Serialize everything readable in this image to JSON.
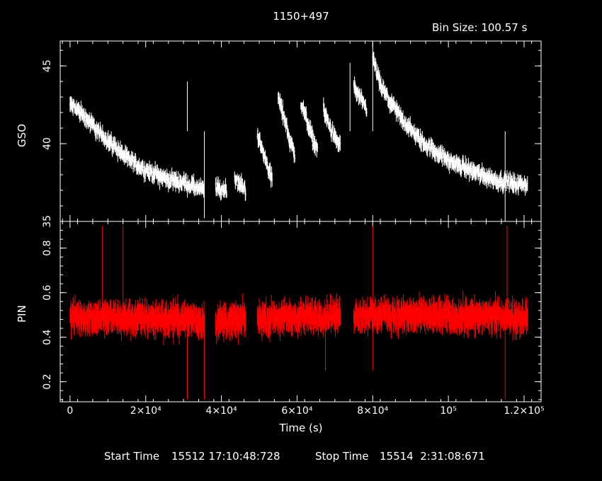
{
  "title": "1150+497",
  "bin_label": "Bin Size: 100.57 s",
  "xlabel": "Time (s)",
  "footer": {
    "start_label": "Start Time",
    "start_value": "15512 17:10:48:728",
    "stop_label": "Stop Time",
    "stop_value": "15514  2:31:08:671"
  },
  "colors": {
    "background": "#000000",
    "axes": "#ffffff",
    "gso": "#ffffff",
    "pin": "#ff0000"
  },
  "chart_data": [
    {
      "type": "scatter",
      "name": "GSO",
      "ylabel": "GSO",
      "xlim": [
        -2600,
        124500
      ],
      "ylim": [
        35,
        46.6
      ],
      "yticks": [
        "35",
        "40",
        "45"
      ],
      "xticks": [
        "0",
        "2×10⁴",
        "4×10⁴",
        "6×10⁴",
        "8×10⁴",
        "10⁵",
        "1.2×10⁵"
      ],
      "segments": [
        {
          "x": [
            0,
            2000,
            4000,
            6000,
            8000,
            10000,
            12000,
            14000,
            16000,
            18000,
            20000,
            22000,
            24000,
            26000,
            28000,
            30000,
            32000,
            34000,
            35500
          ],
          "y": [
            42.5,
            42.2,
            41.7,
            41.2,
            40.6,
            40.2,
            39.8,
            39.3,
            38.9,
            38.6,
            38.3,
            38.1,
            37.9,
            37.7,
            37.6,
            37.5,
            37.3,
            37.1,
            37.0
          ]
        },
        {
          "x": [
            38500,
            40000,
            41500
          ],
          "y": [
            37.2,
            37.0,
            37.1
          ]
        },
        {
          "x": [
            43500,
            45000,
            46500
          ],
          "y": [
            37.8,
            37.3,
            37.1
          ]
        },
        {
          "x": [
            49500,
            51000,
            52500,
            53500
          ],
          "y": [
            40.6,
            39.4,
            38.4,
            37.6
          ]
        },
        {
          "x": [
            55000,
            56500,
            58000,
            59500
          ],
          "y": [
            43.0,
            41.8,
            40.3,
            39.2
          ]
        },
        {
          "x": [
            61000,
            62500,
            64000,
            65500
          ],
          "y": [
            42.6,
            41.6,
            40.4,
            39.6
          ]
        },
        {
          "x": [
            67000,
            68500,
            70000,
            71500
          ],
          "y": [
            42.2,
            41.2,
            40.3,
            39.9
          ]
        },
        {
          "x": [
            75000,
            77000,
            78500
          ],
          "y": [
            43.7,
            42.7,
            42.2
          ]
        },
        {
          "x": [
            80000,
            82000,
            84000,
            86000,
            88000,
            90000,
            92000,
            94000,
            96000,
            98000,
            100000,
            102000,
            104000,
            106000,
            108000,
            110000,
            112000,
            114000,
            116000,
            118000,
            120000,
            121000
          ],
          "y": [
            45.5,
            43.8,
            42.9,
            42.2,
            41.5,
            40.9,
            40.4,
            39.9,
            39.6,
            39.3,
            38.9,
            38.7,
            38.5,
            38.3,
            38.1,
            37.9,
            37.7,
            37.6,
            37.5,
            37.4,
            37.4,
            37.3
          ]
        }
      ],
      "spikes": [
        {
          "x": 31000,
          "y": 44.0
        },
        {
          "x": 35500,
          "y": 35.2
        },
        {
          "x": 74000,
          "y": 45.2
        },
        {
          "x": 80000,
          "y": 46.6
        },
        {
          "x": 115000,
          "y": 35.0
        }
      ]
    },
    {
      "type": "scatter",
      "name": "PIN",
      "ylabel": "PIN",
      "xlim": [
        -2600,
        124500
      ],
      "ylim": [
        0.11,
        0.92
      ],
      "yticks": [
        "0.2",
        "0.4",
        "0.6",
        "0.8"
      ],
      "xticks": [
        "0",
        "2×10⁴",
        "4×10⁴",
        "6×10⁴",
        "8×10⁴",
        "10⁵",
        "1.2×10⁵"
      ],
      "segments": [
        {
          "x": [
            0,
            35500
          ],
          "y": [
            0.49,
            0.48
          ]
        },
        {
          "x": [
            38500,
            46500
          ],
          "y": [
            0.47,
            0.48
          ]
        },
        {
          "x": [
            49500,
            71500
          ],
          "y": [
            0.48,
            0.5
          ]
        },
        {
          "x": [
            75000,
            121000
          ],
          "y": [
            0.5,
            0.49
          ]
        }
      ],
      "spikes": [
        {
          "x": 8500,
          "y": 0.9
        },
        {
          "x": 14000,
          "y": 0.9
        },
        {
          "x": 31000,
          "y": 0.12
        },
        {
          "x": 35500,
          "y": 0.12
        },
        {
          "x": 67500,
          "y": 0.25
        },
        {
          "x": 80000,
          "y": 0.9
        },
        {
          "x": 80000,
          "y": 0.25
        },
        {
          "x": 115000,
          "y": 0.12
        },
        {
          "x": 115500,
          "y": 0.9
        }
      ]
    }
  ]
}
